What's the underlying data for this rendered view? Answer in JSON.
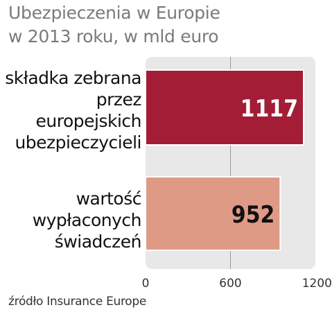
{
  "chart_data": {
    "type": "bar",
    "orientation": "horizontal",
    "title_lines": [
      "Ubezpieczenia w Europie",
      "w 2013 roku, w mld euro"
    ],
    "categories": [
      [
        "składka zebrana",
        "przez",
        "europejskich",
        "ubezpieczycieli"
      ],
      [
        "wartość",
        "wypłaconych",
        "świadczeń"
      ]
    ],
    "values": [
      1117,
      952
    ],
    "value_labels": [
      "1117",
      "952"
    ],
    "xlim": [
      0,
      1200
    ],
    "ticks": [
      {
        "value": 0,
        "label": "0"
      },
      {
        "value": 600,
        "label": "600"
      },
      {
        "value": 1200,
        "label": "1200"
      }
    ],
    "gridlines_at": [
      600
    ],
    "colors": {
      "bars": [
        "#a31d36",
        "#df9a86"
      ],
      "value_text": [
        "#ffffff",
        "#111111"
      ],
      "panel": "#e8e8e8",
      "gridline": "#9a9a9a"
    },
    "source": "źródło Insurance Europe"
  }
}
